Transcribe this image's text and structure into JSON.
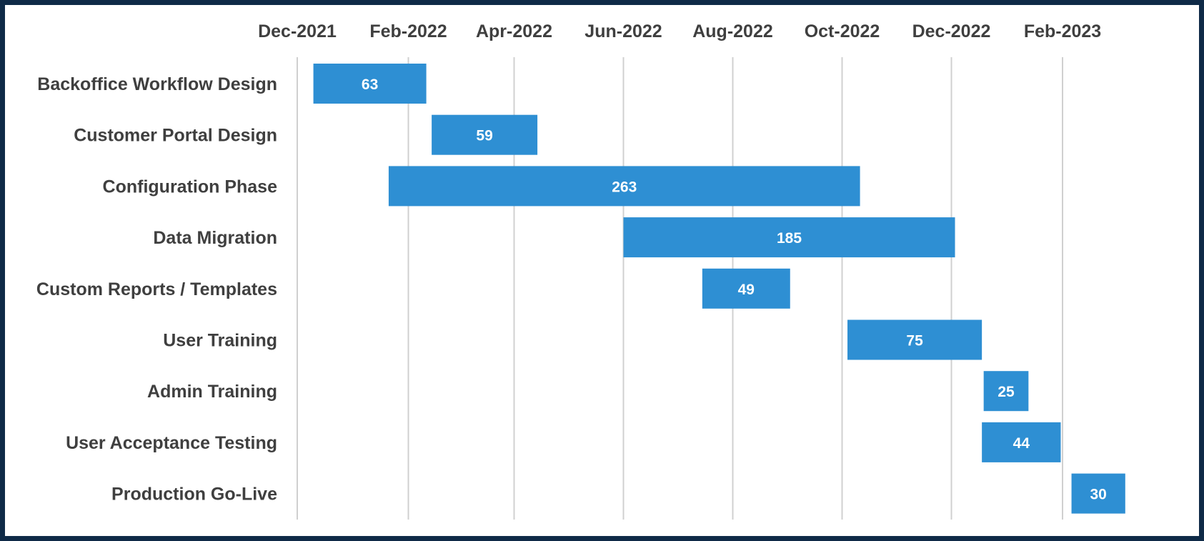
{
  "chart_data": {
    "type": "bar",
    "orientation": "horizontal-gantt",
    "x_axis_position": "top",
    "grid": true,
    "legend": "none",
    "bar_color": "#2e8fd3",
    "gridline_color": "#d0d0d0",
    "frame_color": "#0f2a47",
    "xlim": [
      "2021-12-01",
      "2023-04-01"
    ],
    "x_ticks": [
      {
        "date": "2021-12-01",
        "label": "Dec-2021"
      },
      {
        "date": "2022-02-01",
        "label": "Feb-2022"
      },
      {
        "date": "2022-04-01",
        "label": "Apr-2022"
      },
      {
        "date": "2022-06-01",
        "label": "Jun-2022"
      },
      {
        "date": "2022-08-01",
        "label": "Aug-2022"
      },
      {
        "date": "2022-10-01",
        "label": "Oct-2022"
      },
      {
        "date": "2022-12-01",
        "label": "Dec-2022"
      },
      {
        "date": "2023-02-01",
        "label": "Feb-2023"
      }
    ],
    "tasks": [
      {
        "name": "Backoffice Workflow Design",
        "start": "2021-12-10",
        "duration_days": 63,
        "label": "63"
      },
      {
        "name": "Customer Portal Design",
        "start": "2022-02-14",
        "duration_days": 59,
        "label": "59"
      },
      {
        "name": "Configuration Phase",
        "start": "2022-01-21",
        "duration_days": 263,
        "label": "263"
      },
      {
        "name": "Data Migration",
        "start": "2022-06-01",
        "duration_days": 185,
        "label": "185"
      },
      {
        "name": "Custom Reports / Templates",
        "start": "2022-07-15",
        "duration_days": 49,
        "label": "49"
      },
      {
        "name": "User Training",
        "start": "2022-10-04",
        "duration_days": 75,
        "label": "75"
      },
      {
        "name": "Admin Training",
        "start": "2022-12-19",
        "duration_days": 25,
        "label": "25"
      },
      {
        "name": "User Acceptance Testing",
        "start": "2022-12-18",
        "duration_days": 44,
        "label": "44"
      },
      {
        "name": "Production Go-Live",
        "start": "2023-02-06",
        "duration_days": 30,
        "label": "30"
      }
    ]
  }
}
